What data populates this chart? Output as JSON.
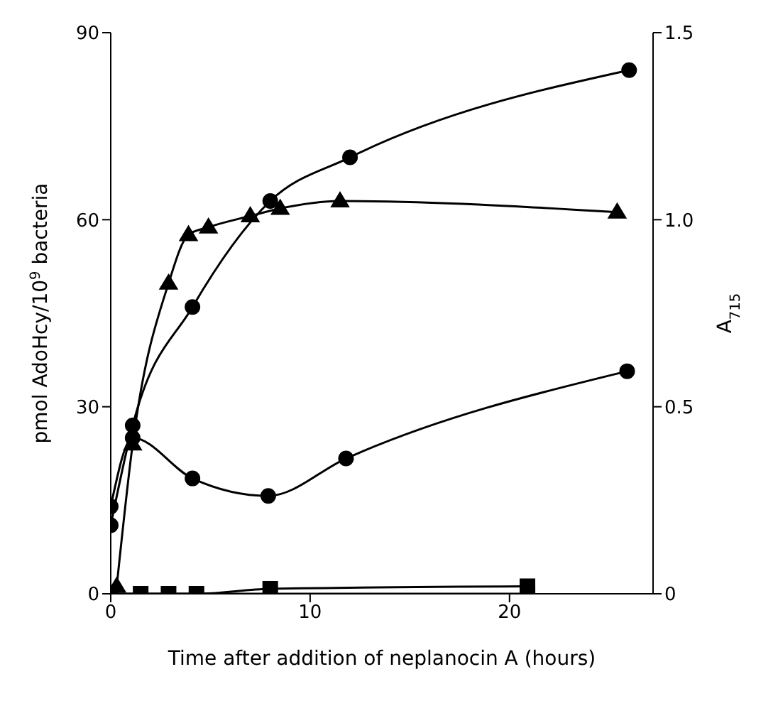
{
  "chart_data": {
    "type": "line",
    "xlabel": "Time after addition of neplanocin A (hours)",
    "ylabel": "pmol AdoHcy/10$^{9}$ bacteria",
    "y2label": "A$_{715}$",
    "xlim": [
      0,
      27.2
    ],
    "xticks": [
      0,
      10,
      20
    ],
    "ylim": [
      0,
      90
    ],
    "yticks": [
      0,
      30,
      60,
      90
    ],
    "y2lim": [
      0,
      1.5
    ],
    "y2ticks": [
      0,
      0.5,
      {
        "value": 1,
        "label": "1.0"
      },
      1.5
    ],
    "grid": false,
    "legend": false,
    "line_style": "solid",
    "series": [
      {
        "color": "#000000",
        "marker": "circle",
        "x": [
          0,
          1.1,
          4.1,
          8,
          12,
          26
        ],
        "values": [
          11,
          27,
          46,
          63,
          70,
          84
        ]
      },
      {
        "color": "#000000",
        "marker": "circle",
        "x": [
          0,
          1.1,
          4.1,
          7.9,
          11.8,
          25.9
        ],
        "values": [
          14,
          25,
          18.5,
          15.7,
          21.7,
          35.7
        ]
      },
      {
        "color": "#000000",
        "marker": "triangle",
        "axis": "y2",
        "x": [
          0.3,
          1.1,
          2.9,
          3.9,
          4.9,
          7,
          8.5,
          11.5,
          25.4
        ],
        "values": [
          0.02,
          0.4,
          0.83,
          0.96,
          0.98,
          1.01,
          1.03,
          1.05,
          1.02
        ]
      },
      {
        "color": "#000000",
        "marker": "square",
        "x": [
          0,
          1.5,
          2.9,
          4.3,
          8,
          20.9
        ],
        "values": [
          0,
          0,
          0,
          0,
          0.8,
          1.2
        ]
      },
      {
        "color": "#000000",
        "marker": "square",
        "x": [
          0,
          20.9
        ],
        "values": [
          0,
          0
        ]
      }
    ]
  }
}
